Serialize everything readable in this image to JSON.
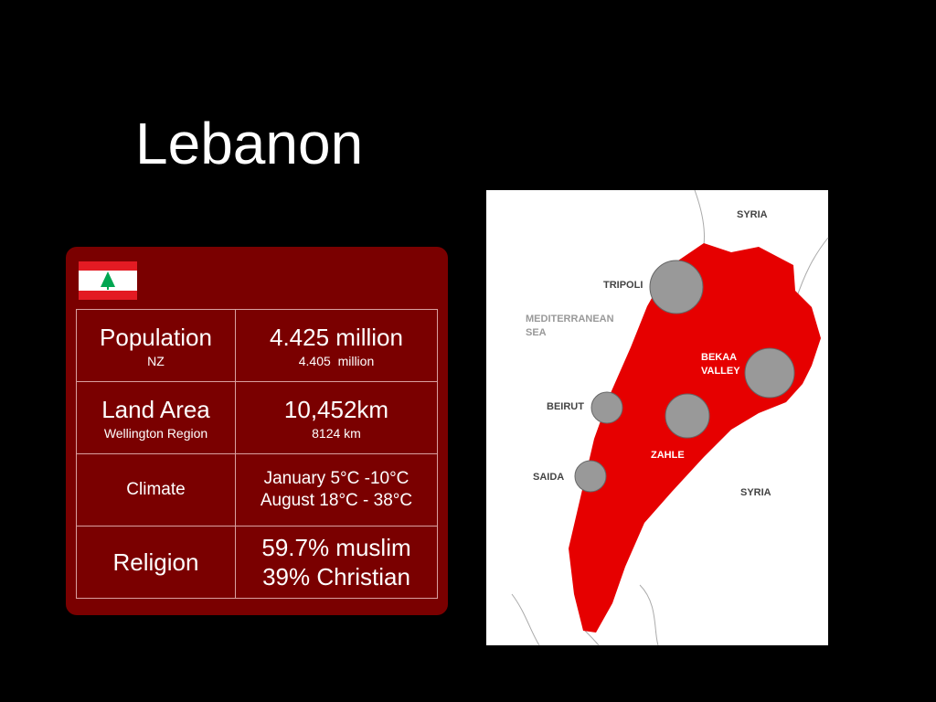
{
  "header": {
    "title": "Lebanon"
  },
  "table": {
    "rows": [
      [
        {
          "main": [
            "Population"
          ],
          "sub": "NZ"
        },
        {
          "main": [
            "4.425 million"
          ],
          "sub": "4.405  million"
        }
      ],
      [
        {
          "main": [
            "Land Area"
          ],
          "sub": "Wellington Region"
        },
        {
          "main": [
            "10,452km"
          ],
          "sub": "8124 km"
        }
      ],
      [
        {
          "main": [
            "Climate"
          ]
        },
        {
          "main": [
            "January 5°C -10°C",
            "August 18°C - 38°C"
          ]
        }
      ],
      [
        {
          "main": [
            "Religion"
          ]
        },
        {
          "main": [
            "59.7% muslim",
            "39% Christian"
          ]
        }
      ]
    ]
  },
  "map": {
    "labels": [
      {
        "lines": [
          "SYRIA"
        ]
      },
      {
        "lines": [
          "TRIPOLI"
        ]
      },
      {
        "lines": [
          "MEDITERRANEAN",
          "SEA"
        ]
      },
      {
        "lines": [
          "BEKAA",
          "VALLEY"
        ]
      },
      {
        "lines": [
          "BEIRUT"
        ]
      },
      {
        "lines": [
          "ZAHLE"
        ]
      },
      {
        "lines": [
          "SAIDA"
        ]
      },
      {
        "lines": [
          "SYRIA"
        ]
      }
    ]
  }
}
